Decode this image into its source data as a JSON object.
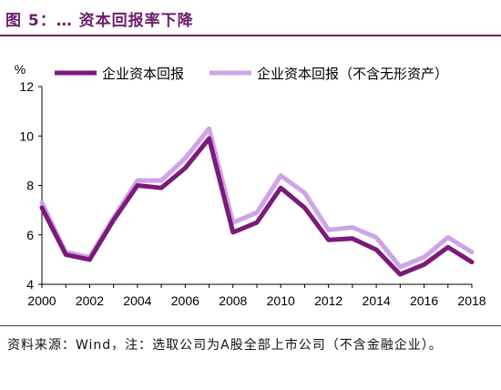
{
  "figure": {
    "title": "图 5：… 资本回报率下降",
    "source_note": "资料来源：Wind，注：选取公司为A股全部上市公司（不含金融企业）。"
  },
  "chart_data": {
    "type": "line",
    "title": "",
    "xlabel": "",
    "ylabel": "%",
    "x": [
      2000,
      2001,
      2002,
      2003,
      2004,
      2005,
      2006,
      2007,
      2008,
      2009,
      2010,
      2011,
      2012,
      2013,
      2014,
      2015,
      2016,
      2017,
      2018
    ],
    "xlim": [
      2000,
      2018
    ],
    "ylim": [
      4,
      12
    ],
    "xticks": [
      2000,
      2002,
      2004,
      2006,
      2008,
      2010,
      2012,
      2014,
      2016,
      2018
    ],
    "yticks": [
      4,
      6,
      8,
      10,
      12
    ],
    "grid": false,
    "legend_position": "top",
    "series": [
      {
        "name": "企业资本回报",
        "color": "#7b1a7b",
        "values": [
          7.1,
          5.2,
          5.0,
          6.6,
          8.0,
          7.9,
          8.7,
          9.9,
          6.1,
          6.5,
          7.9,
          7.1,
          5.8,
          5.85,
          5.4,
          4.4,
          4.8,
          5.5,
          4.9
        ]
      },
      {
        "name": "企业资本回报（不含无形资产）",
        "color": "#cfa3e8",
        "values": [
          7.3,
          5.3,
          5.1,
          6.7,
          8.2,
          8.2,
          9.1,
          10.3,
          6.5,
          6.9,
          8.4,
          7.7,
          6.2,
          6.3,
          5.9,
          4.7,
          5.1,
          5.9,
          5.3
        ]
      }
    ]
  }
}
